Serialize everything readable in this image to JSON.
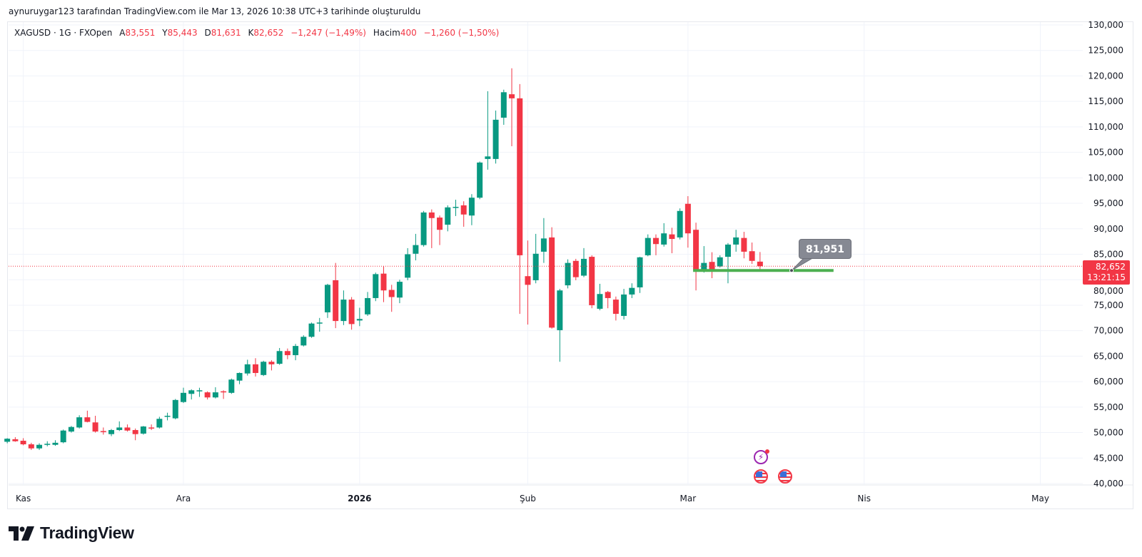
{
  "header": {
    "credit": "aynuruygar123 tarafından TradingView.com ile Mar 13, 2026 10:38 UTC+3 tarihinde oluşturuldu"
  },
  "legend": {
    "title": "XAGUSD · 1G · FXOpen",
    "open_label": "A",
    "open": "83,551",
    "high_label": "Y",
    "high": "85,443",
    "low_label": "D",
    "low": "81,631",
    "close_label": "K",
    "close": "82,652",
    "change": "−1,247 (−1,49%)",
    "volume_label": "Hacim",
    "volume": "400",
    "volume_change": "−1,260 (−1,50%)"
  },
  "price_label": {
    "price": "82,652",
    "countdown": "13:21:15"
  },
  "callout": {
    "text": "81,951",
    "level": 81951
  },
  "brand": {
    "name": "TradingView"
  },
  "events": [
    {
      "icon": "lightning-icon"
    },
    {
      "icon": "us-flag-icon"
    },
    {
      "icon": "us-flag-icon"
    }
  ],
  "colors": {
    "up": "#089981",
    "down": "#F23645",
    "grid": "#f0f3fa",
    "hline": "#4caf50",
    "axis_text": "#131722"
  },
  "chart_data": {
    "type": "candlestick",
    "symbol": "XAGUSD",
    "interval": "1G",
    "ylim": [
      40000,
      130000
    ],
    "yticks": [
      40000,
      45000,
      50000,
      55000,
      60000,
      65000,
      70000,
      75000,
      80000,
      85000,
      90000,
      95000,
      100000,
      105000,
      110000,
      115000,
      120000,
      125000,
      130000
    ],
    "ytick_labels": [
      "40,000",
      "45,000",
      "50,000",
      "55,000",
      "60,000",
      "65,000",
      "70,000",
      "75,000",
      "80,000",
      "85,000",
      "90,000",
      "95,000",
      "100,000",
      "105,000",
      "110,000",
      "115,000",
      "120,000",
      "125,000",
      "130,000"
    ],
    "xticks": [
      {
        "bar": 2,
        "label": "Kas",
        "bold": false
      },
      {
        "bar": 22,
        "label": "Ara",
        "bold": false
      },
      {
        "bar": 44,
        "label": "2026",
        "bold": true
      },
      {
        "bar": 65,
        "label": "Şub",
        "bold": false
      },
      {
        "bar": 85,
        "label": "Mar",
        "bold": false
      },
      {
        "bar": 107,
        "label": "Nis",
        "bold": false
      },
      {
        "bar": 129,
        "label": "May",
        "bold": false
      }
    ],
    "last_price": 82652,
    "horizontal_line": {
      "price": 81951,
      "from_bar": 86,
      "to_bar": 103
    },
    "ohlc": [
      [
        48200,
        48900,
        47900,
        48800
      ],
      [
        48700,
        49100,
        48200,
        48300
      ],
      [
        48400,
        48900,
        47500,
        47700
      ],
      [
        47700,
        48000,
        46600,
        46900
      ],
      [
        46900,
        47900,
        46600,
        47600
      ],
      [
        47700,
        48300,
        47300,
        47800
      ],
      [
        47600,
        48500,
        47400,
        48000
      ],
      [
        48100,
        50600,
        47900,
        50400
      ],
      [
        50200,
        51300,
        50000,
        51100
      ],
      [
        51000,
        53400,
        50800,
        53000
      ],
      [
        53000,
        54300,
        52000,
        52100
      ],
      [
        52000,
        53300,
        50000,
        50200
      ],
      [
        50300,
        51000,
        49600,
        50200
      ],
      [
        49700,
        50700,
        49300,
        50500
      ],
      [
        50500,
        52200,
        50300,
        51000
      ],
      [
        51000,
        51600,
        50200,
        50400
      ],
      [
        50500,
        50800,
        48500,
        49700
      ],
      [
        49800,
        51300,
        49600,
        51200
      ],
      [
        51000,
        51600,
        50500,
        50900
      ],
      [
        51000,
        53100,
        50800,
        52700
      ],
      [
        53100,
        53900,
        52400,
        53300
      ],
      [
        52800,
        56600,
        52600,
        56400
      ],
      [
        56000,
        58800,
        55800,
        57800
      ],
      [
        57600,
        58500,
        56500,
        58300
      ],
      [
        58200,
        58800,
        57000,
        58300
      ],
      [
        57900,
        58100,
        56500,
        56900
      ],
      [
        56900,
        58900,
        56700,
        57900
      ],
      [
        58100,
        58300,
        56600,
        58000
      ],
      [
        57800,
        60600,
        57600,
        60400
      ],
      [
        60200,
        61800,
        59500,
        61700
      ],
      [
        61600,
        64300,
        61200,
        63400
      ],
      [
        63400,
        64600,
        61000,
        61700
      ],
      [
        61300,
        64100,
        61100,
        63900
      ],
      [
        63900,
        64200,
        62200,
        63400
      ],
      [
        63500,
        66600,
        63300,
        66000
      ],
      [
        66000,
        66500,
        64400,
        65200
      ],
      [
        65200,
        67400,
        64200,
        67000
      ],
      [
        67100,
        69100,
        66900,
        68800
      ],
      [
        68800,
        71600,
        68600,
        71400
      ],
      [
        71400,
        72500,
        69800,
        71600
      ],
      [
        73600,
        79200,
        72500,
        79000
      ],
      [
        79900,
        83300,
        70500,
        71900
      ],
      [
        71900,
        77900,
        71100,
        76100
      ],
      [
        76100,
        76600,
        70200,
        71300
      ],
      [
        72000,
        74500,
        70900,
        72300
      ],
      [
        73200,
        77600,
        72900,
        76400
      ],
      [
        76400,
        81400,
        75800,
        81100
      ],
      [
        81200,
        82700,
        75600,
        77900
      ],
      [
        78000,
        79000,
        73700,
        76600
      ],
      [
        76500,
        80000,
        75400,
        79600
      ],
      [
        80400,
        86200,
        79900,
        85000
      ],
      [
        85100,
        89000,
        83800,
        86800
      ],
      [
        86800,
        93500,
        86500,
        93200
      ],
      [
        93200,
        93800,
        86200,
        92100
      ],
      [
        92200,
        92600,
        86800,
        89800
      ],
      [
        90800,
        94600,
        89500,
        94200
      ],
      [
        94100,
        95700,
        92500,
        94300
      ],
      [
        94600,
        95400,
        90400,
        92800
      ],
      [
        92600,
        96800,
        90700,
        96100
      ],
      [
        96100,
        103200,
        95800,
        103000
      ],
      [
        103700,
        117000,
        101600,
        104200
      ],
      [
        103700,
        113200,
        102800,
        111400
      ],
      [
        111800,
        117300,
        110400,
        116800
      ],
      [
        116400,
        121500,
        106200,
        115600
      ],
      [
        115600,
        118400,
        73300,
        84800
      ],
      [
        80700,
        87700,
        71200,
        79000
      ],
      [
        79900,
        89000,
        79300,
        85100
      ],
      [
        85500,
        92100,
        83300,
        88100
      ],
      [
        88300,
        90300,
        70400,
        70600
      ],
      [
        70100,
        78200,
        63900,
        77900
      ],
      [
        78900,
        84000,
        78300,
        83300
      ],
      [
        83700,
        84100,
        79900,
        80500
      ],
      [
        80800,
        86200,
        80500,
        84100
      ],
      [
        84500,
        84800,
        74400,
        75000
      ],
      [
        74300,
        79200,
        74000,
        77200
      ],
      [
        77600,
        77800,
        74400,
        76400
      ],
      [
        76100,
        76700,
        72000,
        73300
      ],
      [
        72900,
        78200,
        72200,
        77100
      ],
      [
        77100,
        79300,
        76400,
        78400
      ],
      [
        78500,
        84500,
        77400,
        84400
      ],
      [
        84800,
        88900,
        84600,
        88200
      ],
      [
        88200,
        88900,
        84800,
        87000
      ],
      [
        86900,
        91100,
        86500,
        89100
      ],
      [
        88900,
        90200,
        85200,
        88000
      ],
      [
        88300,
        94000,
        87900,
        93500
      ],
      [
        94900,
        96400,
        86300,
        89100
      ],
      [
        89800,
        91200,
        77900,
        81900
      ],
      [
        81900,
        86600,
        81400,
        83300
      ],
      [
        83500,
        85400,
        80300,
        82000
      ],
      [
        82600,
        84800,
        82400,
        84400
      ],
      [
        84500,
        87200,
        79300,
        86900
      ],
      [
        86900,
        89800,
        85500,
        88300
      ],
      [
        88200,
        89400,
        84200,
        85500
      ],
      [
        85600,
        87300,
        83100,
        83700
      ],
      [
        83551,
        85443,
        81631,
        82652
      ]
    ]
  }
}
